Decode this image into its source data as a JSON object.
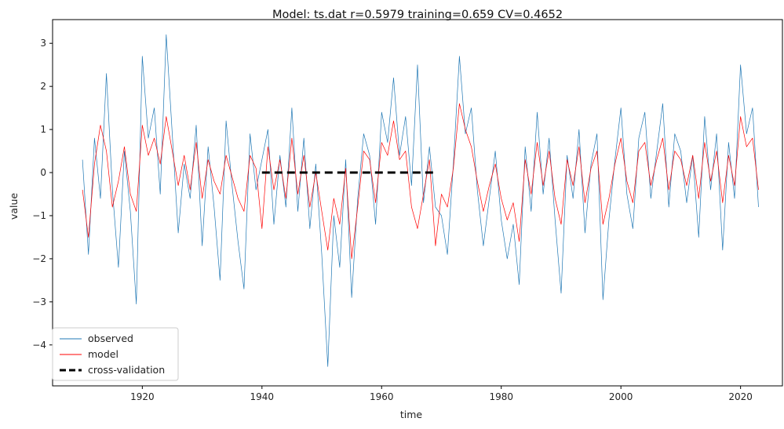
{
  "chart_data": {
    "type": "line",
    "title": "Model: ts.dat  r=0.5979  training=0.659  CV=0.4652",
    "xlabel": "time",
    "ylabel": "value",
    "xlim": [
      1905,
      2027
    ],
    "ylim": [
      -4.95,
      3.55
    ],
    "xticks": [
      1920,
      1940,
      1960,
      1980,
      2000,
      2020
    ],
    "yticks": [
      3,
      2,
      1,
      0,
      -1,
      -2,
      -3,
      -4
    ],
    "grid": false,
    "legend_position": "lower-left",
    "series": [
      {
        "name": "observed",
        "color": "#1f77b4",
        "x": [
          1910,
          1911,
          1912,
          1913,
          1914,
          1915,
          1916,
          1917,
          1918,
          1919,
          1920,
          1921,
          1922,
          1923,
          1924,
          1925,
          1926,
          1927,
          1928,
          1929,
          1930,
          1931,
          1932,
          1933,
          1934,
          1935,
          1936,
          1937,
          1938,
          1939,
          1940,
          1941,
          1942,
          1943,
          1944,
          1945,
          1946,
          1947,
          1948,
          1949,
          1950,
          1951,
          1952,
          1953,
          1954,
          1955,
          1956,
          1957,
          1958,
          1959,
          1960,
          1961,
          1962,
          1963,
          1964,
          1965,
          1966,
          1967,
          1968,
          1969,
          1970,
          1971,
          1972,
          1973,
          1974,
          1975,
          1976,
          1977,
          1978,
          1979,
          1980,
          1981,
          1982,
          1983,
          1984,
          1985,
          1986,
          1987,
          1988,
          1989,
          1990,
          1991,
          1992,
          1993,
          1994,
          1995,
          1996,
          1997,
          1998,
          1999,
          2000,
          2001,
          2002,
          2003,
          2004,
          2005,
          2006,
          2007,
          2008,
          2009,
          2010,
          2011,
          2012,
          2013,
          2014,
          2015,
          2016,
          2017,
          2018,
          2019,
          2020,
          2021,
          2022,
          2023
        ],
        "values": [
          0.3,
          -1.9,
          0.8,
          -0.6,
          2.3,
          -0.4,
          -2.2,
          0.5,
          -0.9,
          -3.05,
          2.7,
          0.8,
          1.5,
          -0.5,
          3.2,
          0.9,
          -1.4,
          0.2,
          -0.6,
          1.1,
          -1.7,
          0.6,
          -0.8,
          -2.5,
          1.2,
          -0.3,
          -1.6,
          -2.7,
          0.9,
          -0.4,
          0.3,
          1.0,
          -1.2,
          0.4,
          -0.8,
          1.5,
          -0.9,
          0.8,
          -1.3,
          0.2,
          -1.9,
          -4.5,
          -1.0,
          -2.2,
          0.3,
          -2.9,
          -0.6,
          0.9,
          0.4,
          -1.2,
          1.4,
          0.7,
          2.2,
          0.4,
          1.3,
          -0.3,
          2.5,
          -0.7,
          0.6,
          -0.8,
          -1.0,
          -1.9,
          0.2,
          2.7,
          0.9,
          1.5,
          -0.4,
          -1.7,
          -0.6,
          0.5,
          -1.1,
          -2.0,
          -1.2,
          -2.6,
          0.6,
          -0.9,
          1.4,
          -0.5,
          0.8,
          -1.1,
          -2.8,
          0.4,
          -0.6,
          1.0,
          -1.4,
          0.2,
          0.9,
          -2.95,
          -1.1,
          0.3,
          1.5,
          -0.5,
          -1.3,
          0.8,
          1.4,
          -0.6,
          0.5,
          1.6,
          -0.8,
          0.9,
          0.5,
          -0.7,
          0.4,
          -1.5,
          1.3,
          -0.4,
          0.9,
          -1.8,
          0.7,
          -0.6,
          2.5,
          0.9,
          1.5,
          -0.8
        ]
      },
      {
        "name": "model",
        "color": "#ff0000",
        "x": [
          1910,
          1911,
          1912,
          1913,
          1914,
          1915,
          1916,
          1917,
          1918,
          1919,
          1920,
          1921,
          1922,
          1923,
          1924,
          1925,
          1926,
          1927,
          1928,
          1929,
          1930,
          1931,
          1932,
          1933,
          1934,
          1935,
          1936,
          1937,
          1938,
          1939,
          1940,
          1941,
          1942,
          1943,
          1944,
          1945,
          1946,
          1947,
          1948,
          1949,
          1950,
          1951,
          1952,
          1953,
          1954,
          1955,
          1956,
          1957,
          1958,
          1959,
          1960,
          1961,
          1962,
          1963,
          1964,
          1965,
          1966,
          1967,
          1968,
          1969,
          1970,
          1971,
          1972,
          1973,
          1974,
          1975,
          1976,
          1977,
          1978,
          1979,
          1980,
          1981,
          1982,
          1983,
          1984,
          1985,
          1986,
          1987,
          1988,
          1989,
          1990,
          1991,
          1992,
          1993,
          1994,
          1995,
          1996,
          1997,
          1998,
          1999,
          2000,
          2001,
          2002,
          2003,
          2004,
          2005,
          2006,
          2007,
          2008,
          2009,
          2010,
          2011,
          2012,
          2013,
          2014,
          2015,
          2016,
          2017,
          2018,
          2019,
          2020,
          2021,
          2022,
          2023
        ],
        "values": [
          -0.4,
          -1.5,
          0.2,
          1.1,
          0.5,
          -0.8,
          -0.2,
          0.6,
          -0.5,
          -0.9,
          1.1,
          0.4,
          0.8,
          0.2,
          1.3,
          0.5,
          -0.3,
          0.4,
          -0.4,
          0.7,
          -0.6,
          0.3,
          -0.2,
          -0.5,
          0.4,
          -0.1,
          -0.6,
          -0.9,
          0.4,
          0.1,
          -1.3,
          0.6,
          -0.4,
          0.3,
          -0.6,
          0.8,
          -0.5,
          0.4,
          -0.8,
          0.0,
          -0.9,
          -1.8,
          -0.6,
          -1.2,
          0.1,
          -2.0,
          -0.8,
          0.5,
          0.3,
          -0.7,
          0.7,
          0.4,
          1.2,
          0.3,
          0.5,
          -0.8,
          -1.3,
          -0.5,
          0.3,
          -1.7,
          -0.5,
          -0.8,
          0.1,
          1.6,
          1.0,
          0.6,
          -0.2,
          -0.9,
          -0.3,
          0.2,
          -0.6,
          -1.1,
          -0.7,
          -1.6,
          0.3,
          -0.5,
          0.7,
          -0.3,
          0.5,
          -0.6,
          -1.2,
          0.3,
          -0.3,
          0.6,
          -0.7,
          0.1,
          0.5,
          -1.2,
          -0.6,
          0.2,
          0.8,
          -0.2,
          -0.7,
          0.5,
          0.7,
          -0.3,
          0.3,
          0.8,
          -0.4,
          0.5,
          0.3,
          -0.3,
          0.4,
          -0.6,
          0.7,
          -0.2,
          0.5,
          -0.7,
          0.4,
          -0.3,
          1.3,
          0.6,
          0.8,
          -0.4
        ]
      },
      {
        "name": "cross-validation",
        "color": "#000000",
        "style": "dashed",
        "x": [
          1940,
          1969
        ],
        "values": [
          0,
          0
        ]
      }
    ]
  }
}
